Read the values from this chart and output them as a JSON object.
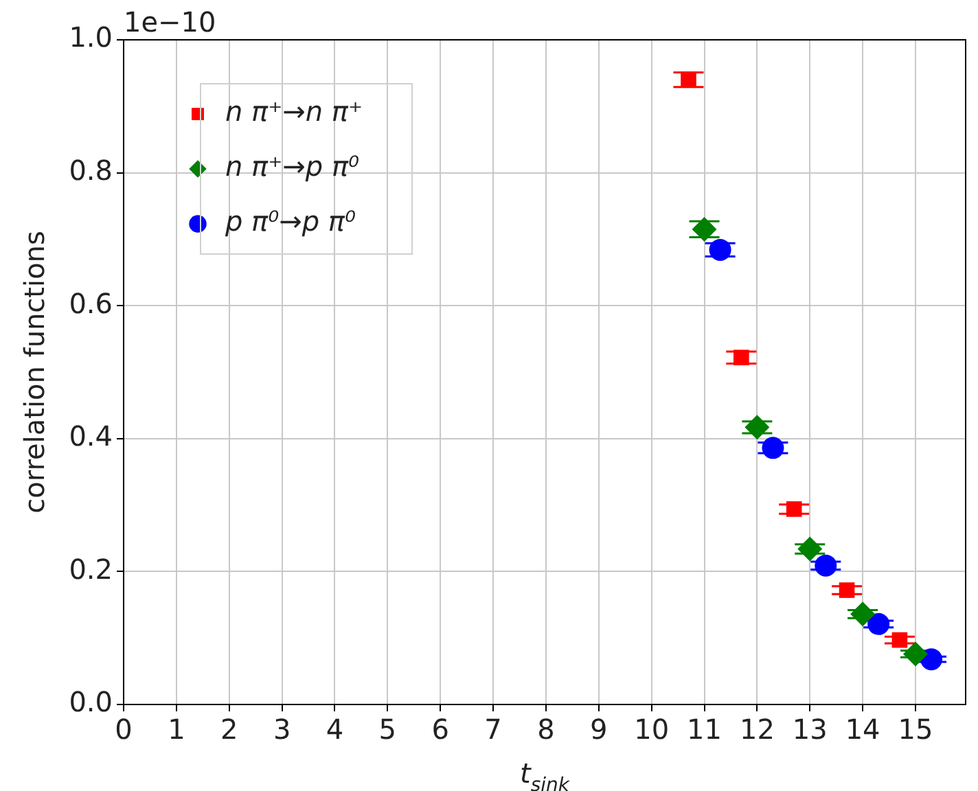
{
  "chart_data": {
    "type": "scatter",
    "xlabel": "t$_{sink}$",
    "ylabel": "correlation functions",
    "annotations": [
      "1e−10"
    ],
    "xlim": [
      0,
      15.95
    ],
    "xticks": [
      0,
      1,
      2,
      3,
      4,
      5,
      6,
      7,
      8,
      9,
      10,
      11,
      12,
      13,
      14,
      15
    ],
    "ylim": [
      0,
      1.0
    ],
    "yticks": [
      {
        "value": 0,
        "label": "0.0"
      },
      {
        "value": 0.2,
        "label": "0.2"
      },
      {
        "value": 0.4,
        "label": "0.4"
      },
      {
        "value": 0.6,
        "label": "0.6"
      },
      {
        "value": 0.8,
        "label": "0.8"
      },
      {
        "value": 1.0,
        "label": "1.0"
      }
    ],
    "grid": true,
    "legend": "top left",
    "series": [
      {
        "name": "n π⁺→n π⁺",
        "color": "#ff0000",
        "marker": "square",
        "x": [
          10.7,
          11.7,
          12.7,
          13.7,
          14.7
        ],
        "values": [
          0.94,
          0.522,
          0.294,
          0.172,
          0.097
        ],
        "errors": [
          0.011,
          0.009,
          0.007,
          0.006,
          0.005
        ]
      },
      {
        "name": "n π⁺→p π⁰",
        "color": "#008000",
        "marker": "diamond",
        "x": [
          11,
          12,
          13,
          14,
          15
        ],
        "values": [
          0.715,
          0.417,
          0.234,
          0.136,
          0.076
        ],
        "errors": [
          0.012,
          0.009,
          0.007,
          0.006,
          0.005
        ]
      },
      {
        "name": "p π⁰→p π⁰",
        "color": "#0000ff",
        "marker": "circle",
        "x": [
          11.3,
          12.3,
          13.3,
          14.3,
          15.3
        ],
        "values": [
          0.684,
          0.386,
          0.209,
          0.121,
          0.068
        ],
        "errors": [
          0.01,
          0.008,
          0.006,
          0.005,
          0.004
        ]
      }
    ]
  }
}
